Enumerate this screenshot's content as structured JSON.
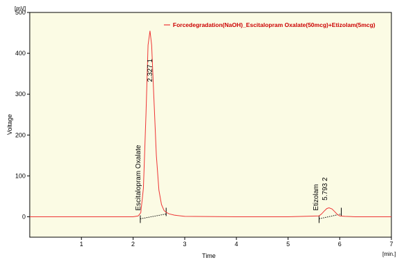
{
  "chart_data": {
    "type": "line",
    "xlabel": "Time",
    "ylabel": "Voltage",
    "x_unit": "[min.]",
    "y_unit": "[mV]",
    "xlim": [
      0,
      7
    ],
    "ylim": [
      -50,
      500
    ],
    "x_ticks": [
      1,
      2,
      3,
      4,
      5,
      6,
      7
    ],
    "y_ticks": [
      0,
      100,
      200,
      300,
      400,
      500
    ],
    "grid": false,
    "legend_position": "top-right",
    "background_color": "#fbfbe4",
    "series": [
      {
        "name": "Forcedegradation(NaOH)_Escitalopram Oxalate(50mcg)+Etizolam(5mcg)",
        "color": "#ee3333",
        "x": [
          0,
          1,
          2,
          2.1,
          2.15,
          2.2,
          2.25,
          2.29,
          2.327,
          2.36,
          2.4,
          2.45,
          2.5,
          2.55,
          2.6,
          2.65,
          2.7,
          2.8,
          3,
          4,
          5,
          5.6,
          5.65,
          5.7,
          5.75,
          5.793,
          5.85,
          5.9,
          5.95,
          6,
          6.1,
          6.3,
          7
        ],
        "y": [
          0,
          0,
          0,
          2,
          10,
          70,
          250,
          420,
          455,
          420,
          300,
          150,
          65,
          30,
          15,
          10,
          7,
          4,
          1,
          0,
          0,
          2,
          7,
          14,
          20,
          22,
          19,
          13,
          6,
          2,
          1,
          0,
          0
        ]
      }
    ],
    "peaks": [
      {
        "number": "1",
        "time": "2.327",
        "name": "Escitalopram Oxalate",
        "start": 2.14,
        "end": 2.64
      },
      {
        "number": "2",
        "time": "5.793",
        "name": "Etizolam",
        "start": 5.6,
        "end": 6.03
      }
    ]
  }
}
